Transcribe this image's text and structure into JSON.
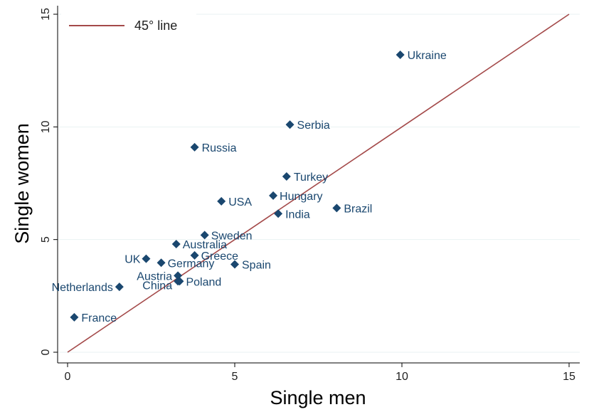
{
  "chart_data": {
    "type": "scatter",
    "title": "",
    "xlabel": "Single men",
    "ylabel": "Single women",
    "xlim": [
      0,
      15
    ],
    "ylim": [
      0,
      15
    ],
    "xticks": [
      0,
      5,
      10,
      15
    ],
    "yticks": [
      0,
      5,
      10,
      15
    ],
    "grid": true,
    "legend": {
      "placement": "top-left",
      "entries": [
        "45° line"
      ]
    },
    "reference_line": {
      "name": "45° line",
      "from": [
        0,
        0
      ],
      "to": [
        15,
        15
      ],
      "color": "#a44a4a"
    },
    "marker_color": "#1a476f",
    "points": [
      {
        "label": "France",
        "x": 0.2,
        "y": 1.55
      },
      {
        "label": "Netherlands",
        "x": 1.55,
        "y": 2.9
      },
      {
        "label": "UK",
        "x": 2.35,
        "y": 4.15
      },
      {
        "label": "Germany",
        "x": 2.8,
        "y": 3.97
      },
      {
        "label": "Australia",
        "x": 3.25,
        "y": 4.8
      },
      {
        "label": "Austria",
        "x": 3.3,
        "y": 3.4
      },
      {
        "label": "China",
        "x": 3.3,
        "y": 3.15
      },
      {
        "label": "Poland",
        "x": 3.35,
        "y": 3.15
      },
      {
        "label": "Greece",
        "x": 3.8,
        "y": 4.3
      },
      {
        "label": "Russia",
        "x": 3.8,
        "y": 9.1
      },
      {
        "label": "Sweden",
        "x": 4.1,
        "y": 5.2
      },
      {
        "label": "USA",
        "x": 4.6,
        "y": 6.7
      },
      {
        "label": "Spain",
        "x": 5.0,
        "y": 3.9
      },
      {
        "label": "Hungary",
        "x": 6.15,
        "y": 6.95
      },
      {
        "label": "India",
        "x": 6.3,
        "y": 6.15
      },
      {
        "label": "Turkey",
        "x": 6.55,
        "y": 7.8
      },
      {
        "label": "Serbia",
        "x": 6.65,
        "y": 10.1
      },
      {
        "label": "Brazil",
        "x": 8.05,
        "y": 6.4
      },
      {
        "label": "Ukraine",
        "x": 9.95,
        "y": 13.2
      }
    ]
  }
}
